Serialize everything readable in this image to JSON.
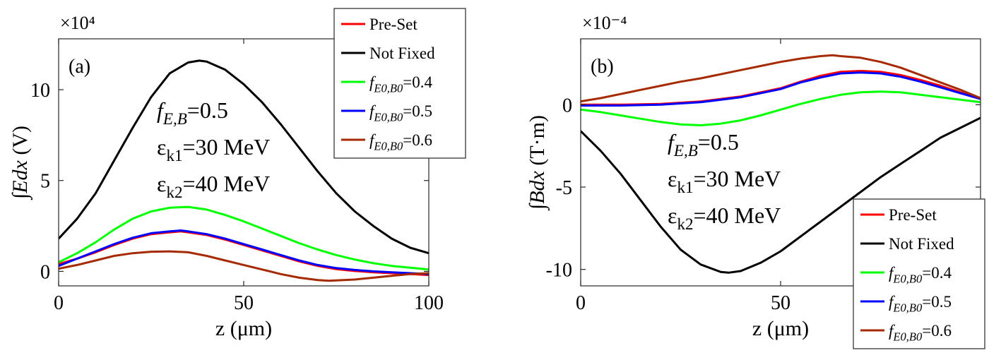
{
  "chart_data": [
    {
      "type": "line",
      "panel_label": "(a)",
      "xlabel": "z (μm)",
      "ylabel": "∫Edx (V)",
      "y_exponent_label": "×10⁴",
      "xlim": [
        0,
        100
      ],
      "ylim": [
        -0.8,
        12.8
      ],
      "y_scale_factor": 10000,
      "x_ticks": [
        0,
        50,
        100
      ],
      "y_ticks": [
        0,
        5,
        10
      ],
      "grid": false,
      "legend_position": "top-right",
      "annotations": [
        "f_E,B=0.5",
        "εk1=30 MeV",
        "εk2=40 MeV"
      ],
      "series": [
        {
          "name": "Pre-Set",
          "color": "#ff0000",
          "x": [
            0,
            5,
            10,
            15,
            20,
            25,
            30,
            33,
            35,
            40,
            45,
            50,
            55,
            60,
            65,
            70,
            75,
            80,
            85,
            90,
            95,
            100
          ],
          "y": [
            0.4,
            0.7,
            1.05,
            1.45,
            1.8,
            2.05,
            2.15,
            2.2,
            2.15,
            2.0,
            1.75,
            1.45,
            1.15,
            0.85,
            0.55,
            0.3,
            0.12,
            0.02,
            -0.05,
            -0.1,
            -0.15,
            -0.2
          ]
        },
        {
          "name": "Not Fixed",
          "color": "#000000",
          "x": [
            0,
            5,
            10,
            15,
            20,
            25,
            30,
            35,
            38,
            40,
            45,
            50,
            55,
            60,
            65,
            70,
            75,
            80,
            85,
            90,
            95,
            100
          ],
          "y": [
            1.8,
            2.9,
            4.3,
            6.1,
            7.9,
            9.6,
            10.9,
            11.5,
            11.6,
            11.55,
            11.1,
            10.3,
            9.3,
            8.1,
            6.8,
            5.5,
            4.3,
            3.3,
            2.5,
            1.8,
            1.3,
            1.0
          ]
        },
        {
          "name": "f_E0,B0=0.4",
          "color": "#00ff00",
          "x": [
            0,
            5,
            10,
            15,
            20,
            25,
            30,
            35,
            40,
            45,
            50,
            55,
            60,
            65,
            70,
            75,
            80,
            85,
            90,
            95,
            100
          ],
          "y": [
            0.5,
            1.0,
            1.6,
            2.3,
            2.9,
            3.3,
            3.5,
            3.55,
            3.4,
            3.1,
            2.75,
            2.35,
            1.95,
            1.55,
            1.2,
            0.9,
            0.65,
            0.45,
            0.3,
            0.2,
            0.1
          ]
        },
        {
          "name": "f_E0,B0=0.5",
          "color": "#0000ff",
          "x": [
            0,
            5,
            10,
            15,
            20,
            25,
            30,
            33,
            35,
            40,
            45,
            50,
            55,
            60,
            65,
            70,
            75,
            80,
            85,
            90,
            95,
            100
          ],
          "y": [
            0.3,
            0.7,
            1.1,
            1.5,
            1.85,
            2.1,
            2.2,
            2.25,
            2.2,
            2.05,
            1.8,
            1.5,
            1.2,
            0.9,
            0.6,
            0.35,
            0.18,
            0.08,
            0.0,
            -0.05,
            -0.1,
            -0.15
          ]
        },
        {
          "name": "f_E0,B0=0.6",
          "color": "#a52a00",
          "x": [
            0,
            5,
            10,
            15,
            20,
            25,
            30,
            35,
            40,
            45,
            50,
            55,
            60,
            65,
            70,
            73,
            75,
            80,
            85,
            90,
            95,
            100
          ],
          "y": [
            0.15,
            0.35,
            0.6,
            0.85,
            1.0,
            1.08,
            1.1,
            1.05,
            0.85,
            0.6,
            0.35,
            0.1,
            -0.15,
            -0.35,
            -0.48,
            -0.52,
            -0.5,
            -0.45,
            -0.35,
            -0.25,
            -0.15,
            -0.1
          ]
        }
      ]
    },
    {
      "type": "line",
      "panel_label": "(b)",
      "xlabel": "z (μm)",
      "ylabel": "∫Bdx (T·m)",
      "y_exponent_label": "×10⁻⁴",
      "xlim": [
        0,
        100
      ],
      "ylim": [
        -11,
        4
      ],
      "y_scale_factor": 0.0001,
      "x_ticks": [
        0,
        50
      ],
      "y_ticks": [
        -10,
        -5,
        0
      ],
      "grid": false,
      "legend_position": "bottom-right",
      "annotations": [
        "f_E,B=0.5",
        "εk1=30 MeV",
        "εk2=40 MeV"
      ],
      "series": [
        {
          "name": "Pre-Set",
          "color": "#ff0000",
          "x": [
            0,
            10,
            20,
            30,
            40,
            50,
            55,
            60,
            65,
            70,
            75,
            80,
            85,
            90,
            95,
            100
          ],
          "y": [
            0,
            0,
            0.05,
            0.2,
            0.5,
            1.0,
            1.4,
            1.75,
            2.0,
            2.05,
            2.0,
            1.8,
            1.5,
            1.15,
            0.75,
            0.4
          ]
        },
        {
          "name": "Not Fixed",
          "color": "#000000",
          "x": [
            0,
            5,
            10,
            15,
            20,
            25,
            30,
            35,
            37,
            40,
            45,
            50,
            55,
            60,
            65,
            70,
            75,
            80,
            85,
            90,
            95,
            100
          ],
          "y": [
            -1.6,
            -2.8,
            -4.2,
            -5.8,
            -7.4,
            -8.8,
            -9.7,
            -10.15,
            -10.2,
            -10.1,
            -9.6,
            -8.9,
            -8.0,
            -7.1,
            -6.2,
            -5.3,
            -4.4,
            -3.6,
            -2.8,
            -2.0,
            -1.4,
            -0.8
          ]
        },
        {
          "name": "f_E0,B0=0.4",
          "color": "#00ff00",
          "x": [
            0,
            5,
            10,
            15,
            20,
            25,
            30,
            35,
            40,
            45,
            50,
            55,
            60,
            65,
            70,
            75,
            80,
            85,
            90,
            95,
            100
          ],
          "y": [
            -0.3,
            -0.45,
            -0.65,
            -0.85,
            -1.05,
            -1.2,
            -1.25,
            -1.15,
            -0.95,
            -0.65,
            -0.3,
            0.05,
            0.35,
            0.6,
            0.75,
            0.8,
            0.75,
            0.6,
            0.45,
            0.3,
            0.15
          ]
        },
        {
          "name": "f_E0,B0=0.5",
          "color": "#0000ff",
          "x": [
            0,
            10,
            20,
            30,
            40,
            50,
            55,
            60,
            65,
            70,
            75,
            80,
            85,
            90,
            95,
            100
          ],
          "y": [
            -0.05,
            -0.05,
            0.0,
            0.15,
            0.45,
            0.95,
            1.35,
            1.65,
            1.9,
            1.95,
            1.9,
            1.7,
            1.4,
            1.05,
            0.7,
            0.35
          ]
        },
        {
          "name": "f_E0,B0=0.6",
          "color": "#a52a00",
          "x": [
            0,
            5,
            10,
            15,
            20,
            25,
            30,
            35,
            40,
            45,
            50,
            55,
            60,
            63,
            65,
            70,
            75,
            80,
            85,
            90,
            95,
            100
          ],
          "y": [
            0.2,
            0.4,
            0.65,
            0.9,
            1.15,
            1.4,
            1.6,
            1.85,
            2.1,
            2.35,
            2.6,
            2.8,
            2.95,
            3.0,
            2.95,
            2.85,
            2.6,
            2.25,
            1.8,
            1.35,
            0.9,
            0.4
          ]
        }
      ]
    }
  ]
}
